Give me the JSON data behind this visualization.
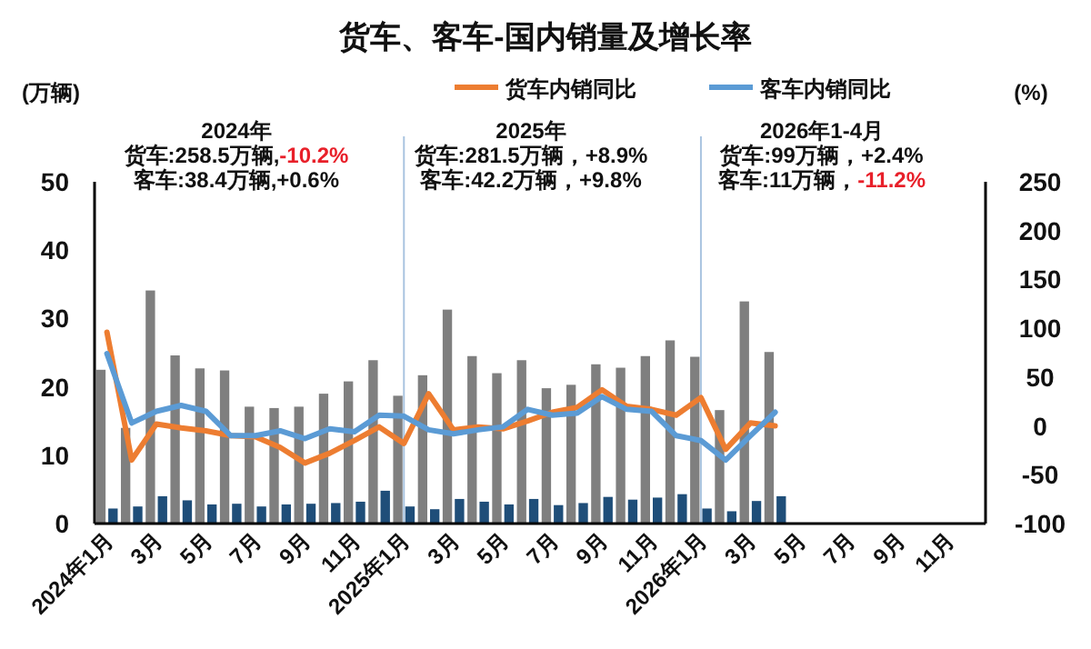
{
  "chart_data": {
    "type": "bar",
    "title": "货车、客车-国内销量及增长率",
    "ylabel": "(万辆)",
    "y2label": "(%)",
    "categories": [
      "2024年1月",
      null,
      "3月",
      null,
      "5月",
      null,
      "7月",
      null,
      "9月",
      null,
      "11月",
      null,
      "2025年1月",
      null,
      "3月",
      null,
      "5月",
      null,
      "7月",
      null,
      "9月",
      null,
      "11月",
      null,
      "2026年1月",
      null,
      "3月",
      null,
      "5月",
      null,
      "7月",
      null,
      "9月",
      null,
      "11月",
      null
    ],
    "series": [
      {
        "name": null,
        "color": "#7f7f7f",
        "values": [
          22.5,
          14,
          34.1,
          24.6,
          22.7,
          22.4,
          17.1,
          16.9,
          17.1,
          19,
          20.8,
          23.9,
          18.7,
          21.7,
          31.3,
          24.5,
          22,
          23.9,
          19.8,
          20.3,
          23.3,
          22.8,
          24.5,
          26.8,
          24.4,
          16.6,
          32.5,
          25.1,
          null,
          null,
          null,
          null,
          null,
          null,
          null,
          null
        ]
      },
      {
        "name": null,
        "color": "#1f4e79",
        "values": [
          2.2,
          2.5,
          4,
          3.4,
          2.8,
          2.9,
          2.5,
          2.8,
          2.9,
          3,
          3.2,
          4.8,
          2.5,
          2.1,
          3.6,
          3.2,
          2.8,
          3.6,
          2.7,
          3,
          3.9,
          3.5,
          3.8,
          4.3,
          2.2,
          1.8,
          3.3,
          4,
          null,
          null,
          null,
          null,
          null,
          null,
          null,
          null
        ]
      },
      {
        "name": "货车内销同比",
        "type": "line",
        "axis": "y2",
        "color": "#ed7d31",
        "values": [
          96,
          -35,
          2,
          -2,
          -5,
          -10,
          -11,
          -22,
          -38,
          -28,
          -15,
          -1,
          -18,
          33,
          -4,
          -1,
          -3,
          5,
          14,
          19,
          37,
          20,
          17,
          11,
          29,
          -24,
          3,
          0,
          null,
          null,
          null,
          null,
          null,
          null,
          null,
          null
        ]
      },
      {
        "name": "客车内销同比",
        "type": "line",
        "axis": "y2",
        "color": "#5b9bd5",
        "values": [
          74,
          3,
          15,
          21,
          15,
          -10,
          -10,
          -5,
          -13,
          -3,
          -6,
          11,
          10,
          -4,
          -8,
          -4,
          -1,
          17,
          11,
          13,
          30,
          17,
          15,
          -10,
          -15,
          -35,
          -10,
          14,
          null,
          null,
          null,
          null,
          null,
          null,
          null,
          null
        ]
      }
    ],
    "ylim": [
      0,
      50
    ],
    "yticks": [
      0,
      10,
      20,
      30,
      40,
      50
    ],
    "y2lim": [
      -100,
      250
    ],
    "y2ticks": [
      -100,
      -50,
      0,
      50,
      100,
      150,
      200,
      250
    ],
    "ref_lines": [
      {
        "axis": "x",
        "value": "2025年1月",
        "color": "#a9c4e0"
      },
      {
        "axis": "x",
        "value": "2026年1月",
        "color": "#a9c4e0"
      }
    ],
    "annotations": [
      "2024年",
      "货车:258.5万辆,-10.2%",
      "客车:38.4万辆,+0.6%",
      "2025年",
      "货车:281.5万辆，+8.9%",
      "客车:42.2万辆，+9.8%",
      "2026年1-4月",
      "货车:99万辆，+2.4%",
      "客车:11万辆，-11.2%"
    ],
    "legend": "top",
    "grid": false
  }
}
